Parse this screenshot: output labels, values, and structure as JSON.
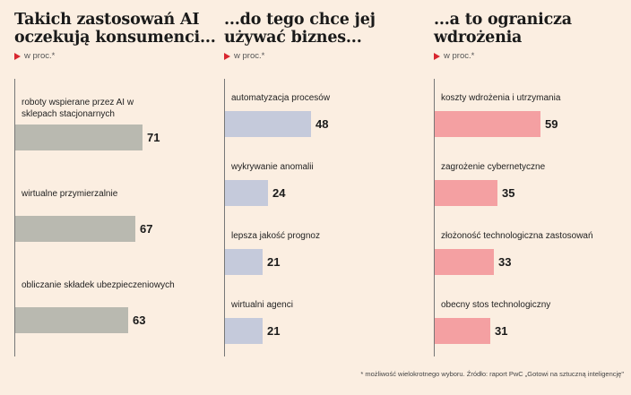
{
  "chart_data": [
    {
      "type": "bar",
      "orientation": "horizontal",
      "title": "Takich zastosowań AI oczekują konsumenci...",
      "unit_label": "w proc.*",
      "categories": [
        "roboty wspierane przez AI w sklepach stacjonarnych",
        "wirtualne przymierzalnie",
        "obliczanie składek ubezpieczeniowych"
      ],
      "values": [
        71,
        67,
        63
      ],
      "color": "#b9b9b0"
    },
    {
      "type": "bar",
      "orientation": "horizontal",
      "title": "...do tego chce jej używać biznes...",
      "unit_label": "w proc.*",
      "categories": [
        "automatyzacja procesów",
        "wykrywanie anomalii",
        "lepsza jakość prognoz",
        "wirtualni agenci"
      ],
      "values": [
        48,
        24,
        21,
        21
      ],
      "color": "#c5cadb"
    },
    {
      "type": "bar",
      "orientation": "horizontal",
      "title": "...a to ogranicza wdrożenia",
      "unit_label": "w proc.*",
      "categories": [
        "koszty wdrożenia i utrzymania",
        "zagrożenie cybernetyczne",
        "złożoność technologiczna zastosowań",
        "obecny stos technologiczny"
      ],
      "values": [
        59,
        35,
        33,
        31
      ],
      "color": "#f4a0a2"
    }
  ],
  "footnote": "* możliwość wielokrotnego wyboru. Źródło: raport PwC „Gotowi na sztuczną inteligencję\""
}
